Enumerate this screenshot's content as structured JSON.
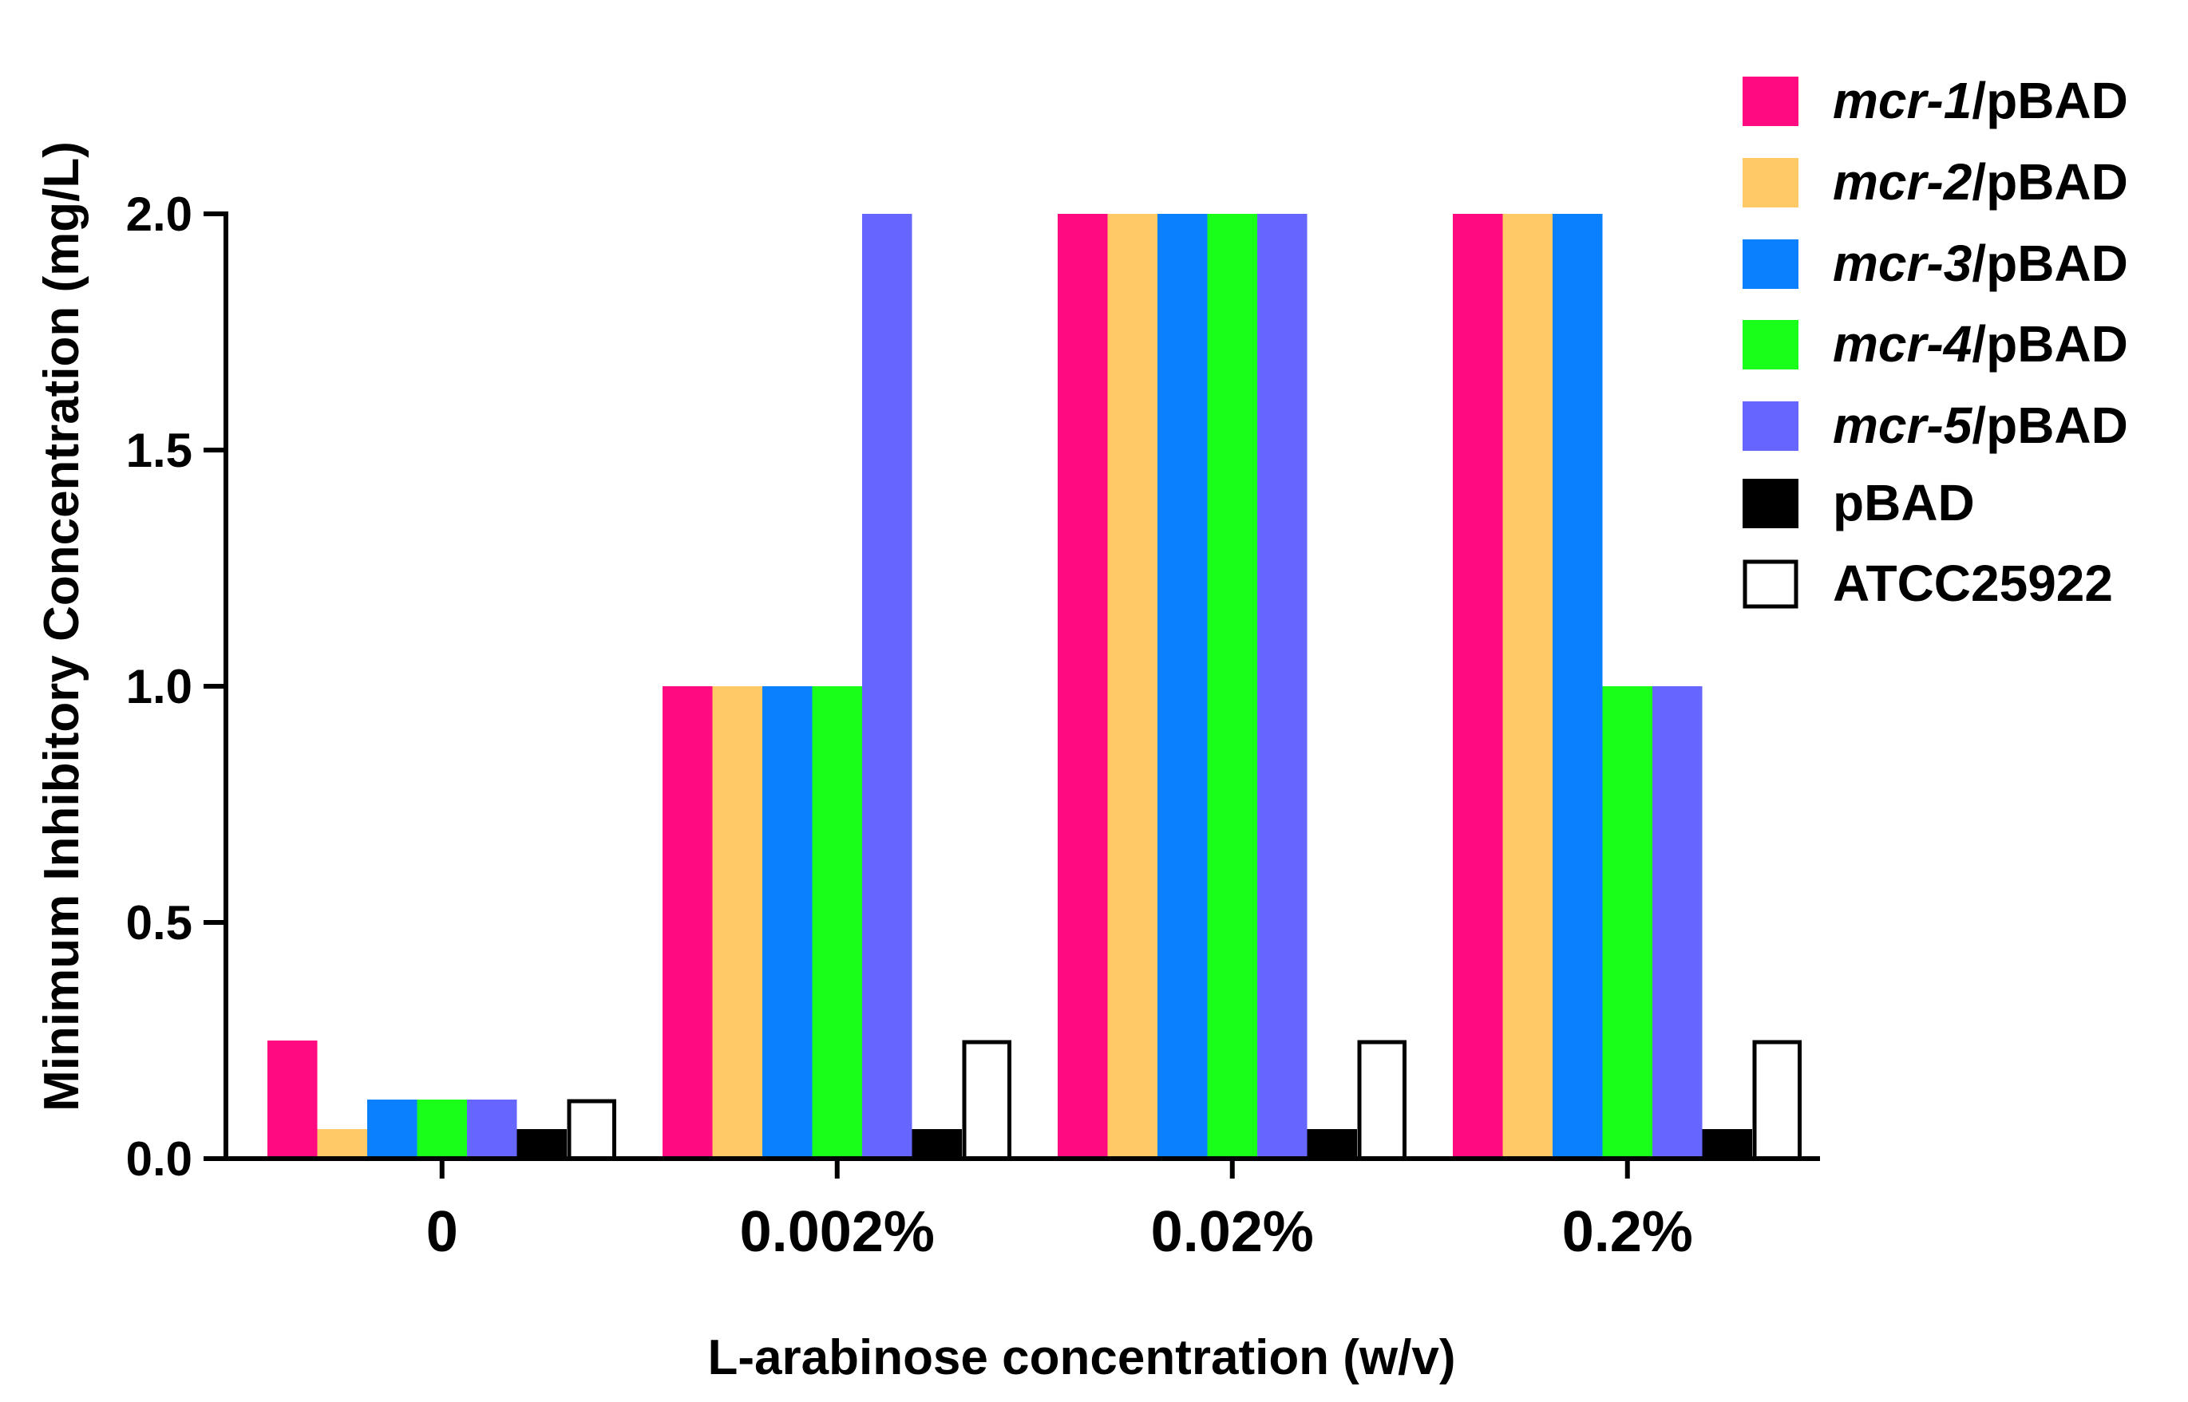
{
  "chart_data": {
    "type": "bar",
    "title": "",
    "xlabel": "L-arabinose concentration (w/v)",
    "ylabel": "Minimum Inhibitory Concentration (mg/L)",
    "ylim": [
      0,
      2.0
    ],
    "yticks": [
      "0.0",
      "0.5",
      "1.0",
      "1.5",
      "2.0"
    ],
    "ytick_values": [
      0,
      0.5,
      1.0,
      1.5,
      2.0
    ],
    "categories": [
      "0",
      "0.002%",
      "0.02%",
      "0.2%"
    ],
    "legend_position": "top-right",
    "series": [
      {
        "name": "mcr-1/pBAD",
        "gene": "mcr-1",
        "suffix": "/pBAD",
        "color": "#FF0A80",
        "outline": false,
        "values": [
          0.25,
          1.0,
          2.0,
          2.0
        ]
      },
      {
        "name": "mcr-2/pBAD",
        "gene": "mcr-2",
        "suffix": "/pBAD",
        "color": "#FFC966",
        "outline": false,
        "values": [
          0.0625,
          1.0,
          2.0,
          2.0
        ]
      },
      {
        "name": "mcr-3/pBAD",
        "gene": "mcr-3",
        "suffix": "/pBAD",
        "color": "#0A80FF",
        "outline": false,
        "values": [
          0.125,
          1.0,
          2.0,
          2.0
        ]
      },
      {
        "name": "mcr-4/pBAD",
        "gene": "mcr-4",
        "suffix": "/pBAD",
        "color": "#19FF19",
        "outline": false,
        "values": [
          0.125,
          1.0,
          2.0,
          1.0
        ]
      },
      {
        "name": "mcr-5/pBAD",
        "gene": "mcr-5",
        "suffix": "/pBAD",
        "color": "#6666FF",
        "outline": false,
        "values": [
          0.125,
          2.0,
          2.0,
          1.0
        ]
      },
      {
        "name": "pBAD",
        "gene": "",
        "suffix": "pBAD",
        "color": "#000000",
        "outline": false,
        "values": [
          0.0625,
          0.0625,
          0.0625,
          0.0625
        ]
      },
      {
        "name": "ATCC25922",
        "gene": "",
        "suffix": "ATCC25922",
        "color": "#FFFFFF",
        "outline": true,
        "values": [
          0.125,
          0.25,
          0.25,
          0.25
        ]
      }
    ]
  }
}
